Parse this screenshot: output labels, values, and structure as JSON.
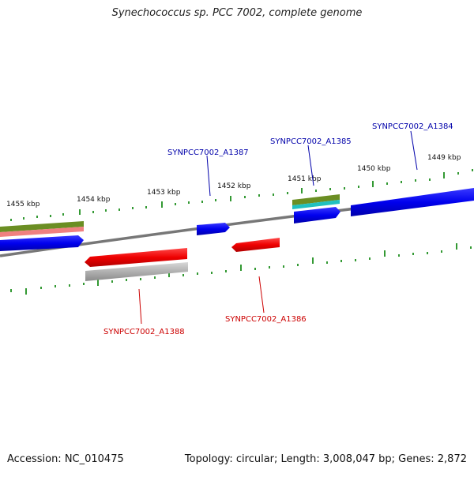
{
  "title": "Synechococcus sp. PCC 7002, complete genome",
  "footer": {
    "accession": "Accession: NC_010475",
    "summary": "Topology: circular; Length: 3,008,047 bp; Genes: 2,872"
  },
  "colors": {
    "forward_gene": "#0000ee",
    "reverse_gene": "#ee0000",
    "backbone": "#777777",
    "tick": "#339933",
    "forward_label": "#0000aa",
    "reverse_label": "#cc0000",
    "orange_feature": "#6b8e23",
    "pink_feature": "#f08080",
    "cyan_feature": "#20c0c0",
    "grey_feature": "#999999"
  },
  "scale_labels": [
    "1455 kbp",
    "1454 kbp",
    "1453 kbp",
    "1452 kbp",
    "1451 kbp",
    "1450 kbp",
    "1449 kbp"
  ],
  "gene_labels": {
    "A1387": "SYNPCC7002_A1387",
    "A1385": "SYNPCC7002_A1385",
    "A1384": "SYNPCC7002_A1384",
    "A1388": "SYNPCC7002_A1388",
    "A1386": "SYNPCC7002_A1386"
  }
}
